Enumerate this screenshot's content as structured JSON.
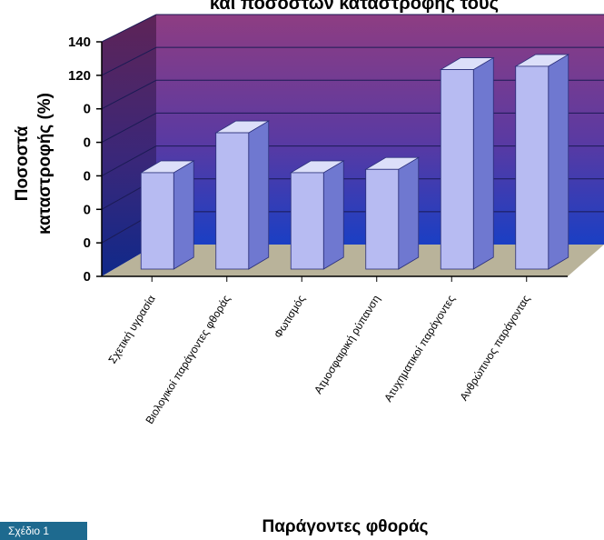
{
  "chart_data": {
    "type": "bar",
    "title": "και ποσοστών καταστροφής τους",
    "xlabel": "Παράγοντες φθοράς",
    "ylabel": [
      "Ποσοστά",
      "καταστροφής (%)"
    ],
    "y_tick_labels": [
      "0",
      "0",
      "0",
      "0",
      "0",
      "0",
      "120",
      "140"
    ],
    "ylim": [
      0,
      140
    ],
    "categories": [
      "Σχετική υγρασία",
      "Βιολογικοί παράγοντες φθοράς",
      "Φωτισμός",
      "Ατμοσφαιρική ρύπανση",
      "Ατυχηματικοί παράγοντες",
      "Ανθρώπινος παράγοντας"
    ],
    "values": [
      58,
      82,
      58,
      60,
      120,
      122
    ],
    "grid": true,
    "style": "3d"
  },
  "figure_label": "Σχέδιο 1",
  "colors": {
    "wall_top": "#8e3d82",
    "wall_bottom": "#1a3fc4",
    "floor": "#b9b39a",
    "bar_front": "#b7bbf2",
    "bar_top": "#dcdff9",
    "bar_side": "#6f78d0",
    "figure_tag": "#1e6a8f"
  }
}
